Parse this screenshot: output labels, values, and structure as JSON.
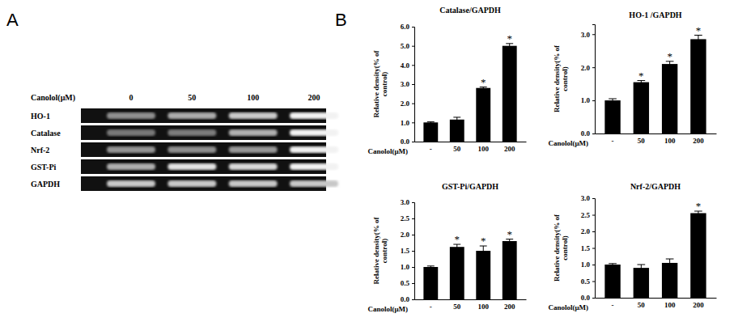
{
  "panel_labels": [
    "A",
    "B"
  ],
  "gel": {
    "label": "Canolol(μM)",
    "lanes": [
      0,
      50,
      100,
      200
    ],
    "rows": [
      "HO-1",
      "Catalase",
      "Nrf-2",
      "GST-Pi",
      "GAPDH"
    ]
  },
  "chart_data": [
    {
      "type": "bar",
      "title": "Catalase/GAPDH",
      "y_label": "Relative density(% of control)",
      "x_label": "Canolol(μM)",
      "categories": [
        "-",
        "50",
        "100",
        "200"
      ],
      "values": [
        1.0,
        1.15,
        2.8,
        5.0
      ],
      "errors": [
        0.03,
        0.12,
        0.05,
        0.12
      ],
      "color": "#000000",
      "ylim": [
        0,
        6
      ],
      "yticks": [
        {
          "value": 0,
          "label": "0.0"
        },
        {
          "value": 1,
          "label": "1.0"
        },
        {
          "value": 2,
          "label": "2.0"
        },
        {
          "value": 3,
          "label": "3.0"
        },
        {
          "value": 4,
          "label": "4.0"
        },
        {
          "value": 5,
          "label": "5.0"
        },
        {
          "value": 6,
          "label": "6.0"
        }
      ],
      "annotations": [
        {
          "category": "100",
          "text": "*"
        },
        {
          "category": "200",
          "text": "*"
        }
      ]
    },
    {
      "type": "bar",
      "title": "HO-1 /GAPDH",
      "y_label": "Relative density(% of control)",
      "x_label": "Canolol(μM)",
      "categories": [
        "-",
        "50",
        "100",
        "200"
      ],
      "values": [
        1.0,
        1.55,
        2.1,
        2.85
      ],
      "errors": [
        0.05,
        0.05,
        0.08,
        0.12
      ],
      "color": "#000000",
      "ylim": [
        0,
        3.3
      ],
      "yticks": [
        {
          "value": 0,
          "label": "0.0"
        },
        {
          "value": 1,
          "label": "1.0"
        },
        {
          "value": 2,
          "label": "2.0"
        },
        {
          "value": 3,
          "label": "3.0"
        }
      ],
      "annotations": [
        {
          "category": "50",
          "text": "*"
        },
        {
          "category": "100",
          "text": "*"
        },
        {
          "category": "200",
          "text": "*"
        }
      ]
    },
    {
      "type": "bar",
      "title": "GST-Pi/GAPDH",
      "y_label": "Relative density(% of control)",
      "x_label": "Canolol(μM)",
      "categories": [
        "-",
        "50",
        "100",
        "200"
      ],
      "values": [
        1.0,
        1.62,
        1.5,
        1.8
      ],
      "errors": [
        0.03,
        0.08,
        0.15,
        0.06
      ],
      "color": "#000000",
      "ylim": [
        0,
        3
      ],
      "yticks": [
        {
          "value": 0,
          "label": "0.0"
        },
        {
          "value": 0.5,
          "label": "0.5"
        },
        {
          "value": 1,
          "label": "1.0"
        },
        {
          "value": 1.5,
          "label": "1.5"
        },
        {
          "value": 2,
          "label": "2.0"
        },
        {
          "value": 2.5,
          "label": "2.5"
        },
        {
          "value": 3,
          "label": "3.0"
        }
      ],
      "annotations": [
        {
          "category": "50",
          "text": "*"
        },
        {
          "category": "100",
          "text": "*"
        },
        {
          "category": "200",
          "text": "*"
        }
      ]
    },
    {
      "type": "bar",
      "title": "Nrf-2/GAPDH",
      "y_label": "Relative density(% of control)",
      "x_label": "Canolol(μM)",
      "categories": [
        "-",
        "50",
        "100",
        "200"
      ],
      "values": [
        1.0,
        0.9,
        1.05,
        2.55
      ],
      "errors": [
        0.03,
        0.1,
        0.12,
        0.06
      ],
      "color": "#000000",
      "ylim": [
        0,
        3
      ],
      "yticks": [
        {
          "value": 0,
          "label": "0.0"
        },
        {
          "value": 0.5,
          "label": "0.5"
        },
        {
          "value": 1,
          "label": "1.0"
        },
        {
          "value": 1.5,
          "label": "1.5"
        },
        {
          "value": 2,
          "label": "2.0"
        },
        {
          "value": 2.5,
          "label": "2.5"
        },
        {
          "value": 3,
          "label": "3.0"
        }
      ],
      "annotations": [
        {
          "category": "200",
          "text": "*"
        }
      ]
    }
  ]
}
